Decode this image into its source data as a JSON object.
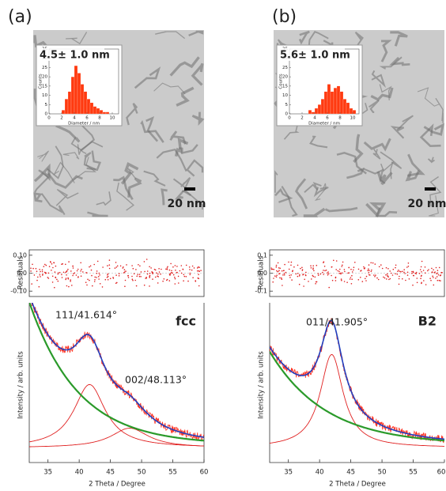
{
  "panels": [
    {
      "label": "(a)",
      "size_label": "4.5± 1.0 nm",
      "scale_bar": "20 nm",
      "histogram": {
        "ylabel": "Counts",
        "xlabel": "Diameter / nm",
        "color": "#ff3a10",
        "bins": [
          2,
          2.5,
          3,
          3.5,
          4,
          4.5,
          5,
          5.5,
          6,
          6.5,
          7,
          7.5,
          8,
          8.5,
          9,
          9.5
        ],
        "counts": [
          2,
          8,
          12,
          20,
          26,
          22,
          16,
          12,
          8,
          6,
          4,
          3,
          2,
          1,
          1
        ],
        "xlim": [
          0,
          11
        ],
        "ylim": [
          0,
          35
        ],
        "xticks": [
          0,
          2,
          4,
          6,
          8,
          10
        ],
        "yticks": [
          0,
          5,
          10,
          15,
          20,
          25,
          30,
          35
        ]
      },
      "xrd": {
        "residual_label": "Residuals",
        "residual_ylim": [
          -0.13,
          0.13
        ],
        "residual_yticks": [
          {
            "value": 0.1,
            "label": "0.10"
          },
          {
            "value": 0,
            "label": "0.0"
          },
          {
            "value": -0.1,
            "label": "-0.10"
          }
        ],
        "ylabel": "Intensity / arb. units",
        "xlabel": "2 Theta / Degree",
        "xlim": [
          32,
          60
        ],
        "xticks": [
          35,
          40,
          45,
          50,
          55,
          60
        ],
        "phase": "fcc",
        "peaks": [
          "111/41.614°",
          "002/48.113°"
        ]
      }
    },
    {
      "label": "(b)",
      "size_label": "5.6± 1.0 nm",
      "scale_bar": "20 nm",
      "histogram": {
        "ylabel": "Counts",
        "xlabel": "Diameter / nm",
        "color": "#ff3a10",
        "bins": [
          3,
          3.5,
          4,
          4.5,
          5,
          5.5,
          6,
          6.5,
          7,
          7.5,
          8,
          8.5,
          9,
          9.5,
          10,
          10.5
        ],
        "counts": [
          2,
          1,
          3,
          5,
          8,
          12,
          16,
          12,
          14,
          15,
          12,
          8,
          6,
          3,
          2
        ],
        "xlim": [
          0,
          11
        ],
        "ylim": [
          0,
          35
        ],
        "xticks": [
          0,
          2,
          4,
          6,
          8,
          10
        ],
        "yticks": [
          0,
          5,
          10,
          15,
          20,
          25,
          30,
          35
        ]
      },
      "xrd": {
        "residual_label": "Residuals",
        "residual_ylim": [
          -0.13,
          0.13
        ],
        "residual_yticks": [
          {
            "value": 0.1,
            "label": "0.1"
          },
          {
            "value": 0,
            "label": "0.0"
          },
          {
            "value": -0.1,
            "label": "-0.1"
          }
        ],
        "ylabel": "Intensity / arb. units",
        "xlabel": "2 Theta / Degree",
        "xlim": [
          32,
          60
        ],
        "xticks": [
          35,
          40,
          45,
          50,
          55,
          60
        ],
        "phase": "B2",
        "peaks": [
          "011/41.905°"
        ]
      }
    }
  ]
}
